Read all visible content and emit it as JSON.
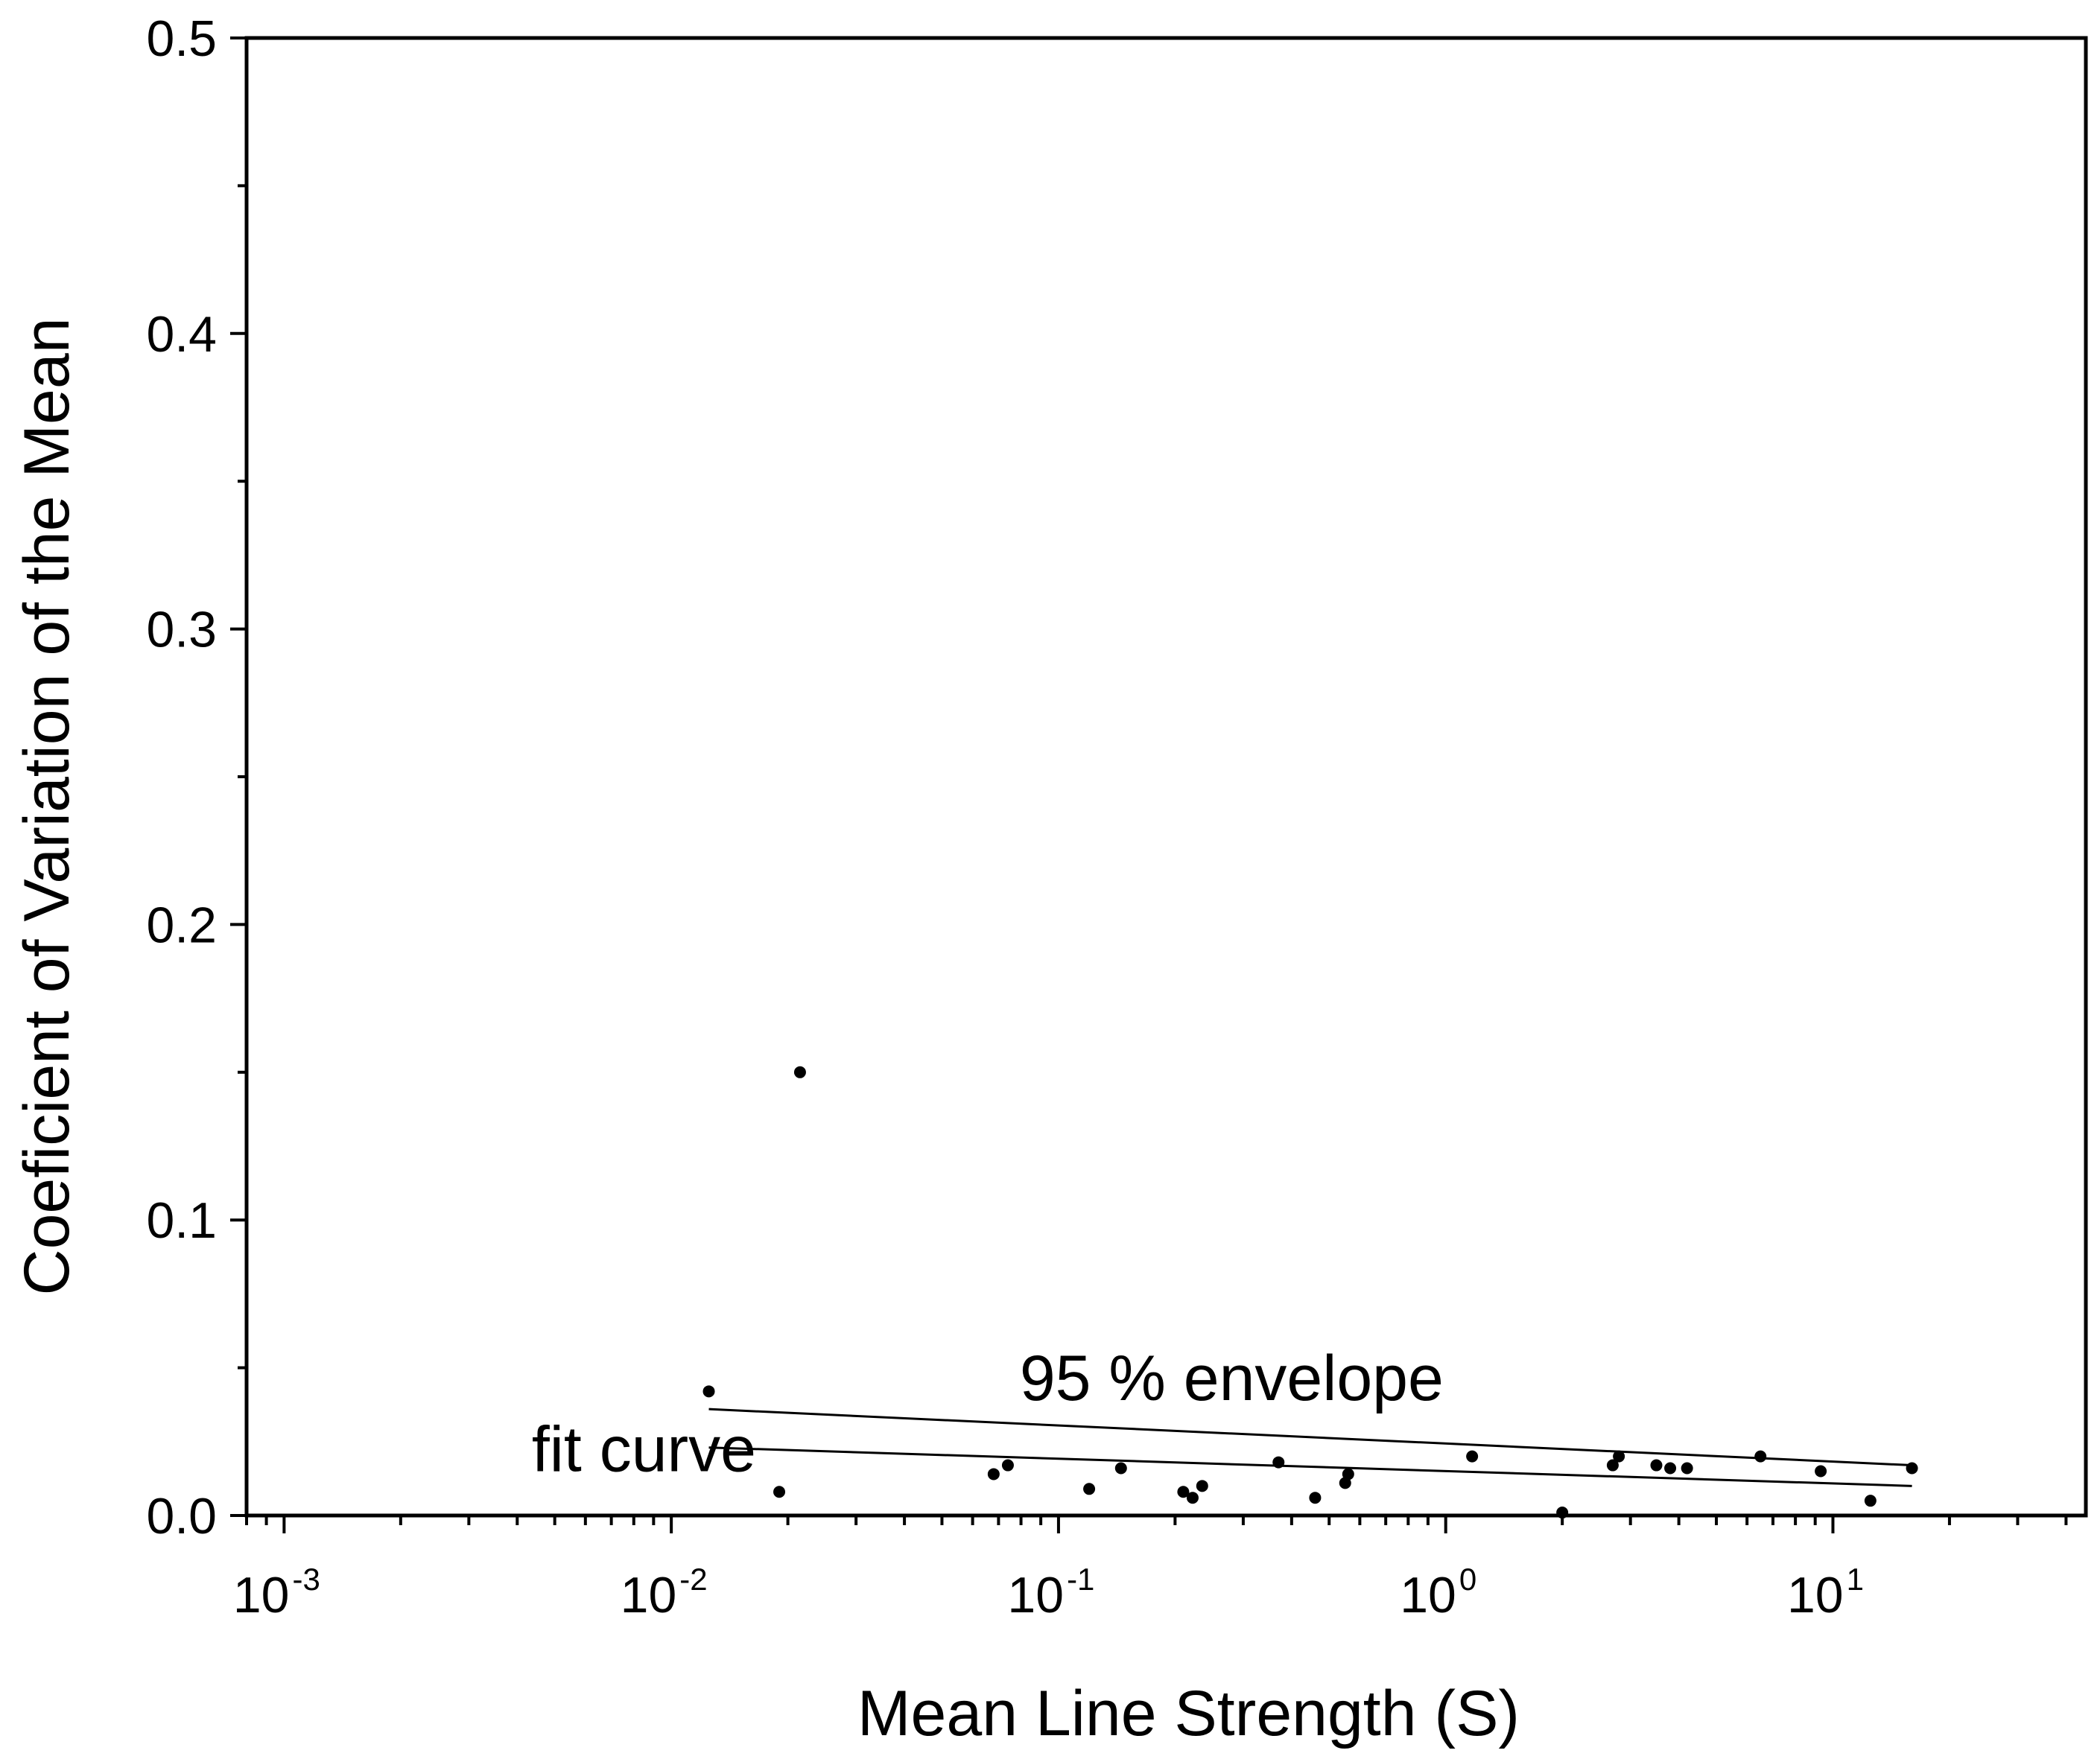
{
  "chart_data": {
    "type": "scatter",
    "xlabel": "Mean Line Strength (S)",
    "ylabel": "Coeficient of Variation of the Mean",
    "xscale": "log",
    "xlim": [
      0.0008,
      45
    ],
    "ylim": [
      0,
      0.5
    ],
    "yticks": [
      "0.0",
      "0.1",
      "0.2",
      "0.3",
      "0.4",
      "0.5"
    ],
    "xticks": [
      {
        "base": "10",
        "exp": "-3",
        "value": 0.001
      },
      {
        "base": "10",
        "exp": "-2",
        "value": 0.01
      },
      {
        "base": "10",
        "exp": "-1",
        "value": 0.1
      },
      {
        "base": "10",
        "exp": "0",
        "value": 1
      },
      {
        "base": "10",
        "exp": "1",
        "value": 10
      }
    ],
    "points": [
      {
        "x": 0.0125,
        "y": 0.042
      },
      {
        "x": 0.019,
        "y": 0.008
      },
      {
        "x": 0.0215,
        "y": 0.15
      },
      {
        "x": 0.068,
        "y": 0.014
      },
      {
        "x": 0.074,
        "y": 0.017
      },
      {
        "x": 0.12,
        "y": 0.009
      },
      {
        "x": 0.145,
        "y": 0.016
      },
      {
        "x": 0.21,
        "y": 0.008
      },
      {
        "x": 0.222,
        "y": 0.006
      },
      {
        "x": 0.235,
        "y": 0.01
      },
      {
        "x": 0.37,
        "y": 0.018
      },
      {
        "x": 0.46,
        "y": 0.006
      },
      {
        "x": 0.55,
        "y": 0.011
      },
      {
        "x": 0.56,
        "y": 0.014
      },
      {
        "x": 1.17,
        "y": 0.02
      },
      {
        "x": 2.0,
        "y": 0.001
      },
      {
        "x": 2.7,
        "y": 0.017
      },
      {
        "x": 2.8,
        "y": 0.02
      },
      {
        "x": 3.5,
        "y": 0.017
      },
      {
        "x": 3.8,
        "y": 0.016
      },
      {
        "x": 4.2,
        "y": 0.016
      },
      {
        "x": 6.5,
        "y": 0.02
      },
      {
        "x": 9.3,
        "y": 0.015
      },
      {
        "x": 12.5,
        "y": 0.005
      },
      {
        "x": 16.0,
        "y": 0.016
      }
    ],
    "lines": [
      {
        "name": "95 % envelope",
        "x": [
          0.0125,
          16
        ],
        "y": [
          0.036,
          0.017
        ]
      },
      {
        "name": "fit curve",
        "x": [
          0.0125,
          16
        ],
        "y": [
          0.023,
          0.01
        ]
      }
    ],
    "annotations": [
      {
        "text": "95 % envelope",
        "x": 0.28,
        "y": 0.039
      },
      {
        "text": "fit curve",
        "x": 0.0085,
        "y": 0.015
      }
    ]
  }
}
